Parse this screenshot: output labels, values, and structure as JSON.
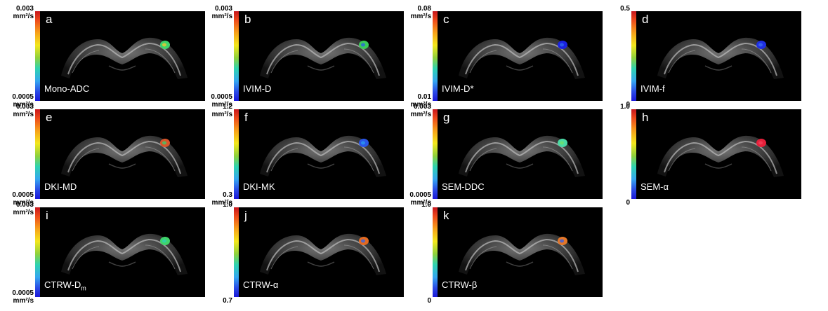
{
  "panels": [
    {
      "letter": "a",
      "param": "Mono-ADC",
      "param_sub": "",
      "top_value": "0.003",
      "top_unit": "mm²/s",
      "bottom_value": "0.0005",
      "bottom_unit": "mm²/s",
      "lesion_color": "#3fd36a",
      "lesion_core": "#f2c531"
    },
    {
      "letter": "b",
      "param": "IVIM-D",
      "param_sub": "",
      "top_value": "0.003",
      "top_unit": "mm²/s",
      "bottom_value": "0.0005",
      "bottom_unit": "mm²/s",
      "lesion_color": "#3acb59",
      "lesion_core": "#2d64e0"
    },
    {
      "letter": "c",
      "param": "IVIM-D*",
      "param_sub": "",
      "top_value": "0.08",
      "top_unit": "mm²/s",
      "bottom_value": "0.01",
      "bottom_unit": "mm²/s",
      "lesion_color": "#1a22e0",
      "lesion_core": "#2e66f0"
    },
    {
      "letter": "d",
      "param": "IVIM-f",
      "param_sub": "",
      "top_value": "0.5",
      "top_unit": "",
      "bottom_value": "0",
      "bottom_unit": "",
      "lesion_color": "#1f2fe2",
      "lesion_core": "#3a6af0"
    },
    {
      "letter": "e",
      "param": "DKI-MD",
      "param_sub": "",
      "top_value": "0.003",
      "top_unit": "mm²/s",
      "bottom_value": "0.0005",
      "bottom_unit": "mm²/s",
      "lesion_color": "#d8552a",
      "lesion_core": "#3fc86a"
    },
    {
      "letter": "f",
      "param": "DKI-MK",
      "param_sub": "",
      "top_value": "1.2",
      "top_unit": "mm²/s",
      "bottom_value": "0.3",
      "bottom_unit": "mm²/s",
      "lesion_color": "#2a56e8",
      "lesion_core": "#2a9af0"
    },
    {
      "letter": "g",
      "param": "SEM-DDC",
      "param_sub": "",
      "top_value": "0.003",
      "top_unit": "mm²/s",
      "bottom_value": "0.0005",
      "bottom_unit": "mm²/s",
      "lesion_color": "#4bd8a4",
      "lesion_core": "#6fe06a"
    },
    {
      "letter": "h",
      "param": "SEM-α",
      "param_sub": "",
      "top_value": "1.0",
      "top_unit": "",
      "bottom_value": "0",
      "bottom_unit": "",
      "lesion_color": "#e5203a",
      "lesion_core": "#f0405a"
    },
    {
      "letter": "i",
      "param": "CTRW-D",
      "param_sub": "m",
      "top_value": "0.003",
      "top_unit": "mm²/s",
      "bottom_value": "0.0005",
      "bottom_unit": "mm²/s",
      "lesion_color": "#3fd36a",
      "lesion_core": "#2fd0b0"
    },
    {
      "letter": "j",
      "param": "CTRW-α",
      "param_sub": "",
      "top_value": "1.0",
      "top_unit": "",
      "bottom_value": "0.7",
      "bottom_unit": "",
      "lesion_color": "#e26a22",
      "lesion_core": "#3a66e0"
    },
    {
      "letter": "k",
      "param": "CTRW-β",
      "param_sub": "",
      "top_value": "1.0",
      "top_unit": "",
      "bottom_value": "0",
      "bottom_unit": "",
      "lesion_color": "#e3772a",
      "lesion_core": "#3a5fe0"
    }
  ]
}
